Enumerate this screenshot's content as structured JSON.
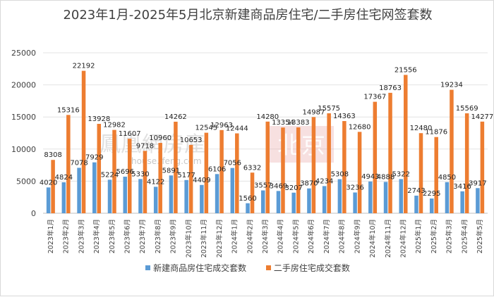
{
  "chart_data": {
    "type": "bar",
    "title": "2023年1月-2025年5月北京新建商品房住宅/二手房住宅网签套数",
    "xlabel": "",
    "ylabel": "",
    "ylim": [
      0,
      25000
    ],
    "yticks": [
      0,
      5000,
      10000,
      15000,
      20000,
      25000
    ],
    "grid": true,
    "legend_position": "bottom",
    "categories": [
      "2023年1月",
      "2023年2月",
      "2023年3月",
      "2023年4月",
      "2023年5月",
      "2023年6月",
      "2023年7月",
      "2023年8月",
      "2023年9月",
      "2023年10月",
      "2023年11月",
      "2023年12月",
      "2024年1月",
      "2024年2月",
      "2024年3月",
      "2024年4月",
      "2024年5月",
      "2024年6月",
      "2024年7月",
      "2024年8月",
      "2024年9月",
      "2024年10月",
      "2024年11月",
      "2024年12月",
      "2025年1月",
      "2025年2月",
      "2025年3月",
      "2025年4月",
      "2025年5月"
    ],
    "series": [
      {
        "name": "新建商品房住宅成交套数",
        "color": "#5b9bd5",
        "values": [
          4020,
          4824,
          7078,
          7929,
          5224,
          5696,
          5330,
          4122,
          5891,
          5177,
          4409,
          6106,
          7056,
          1560,
          3557,
          3469,
          3207,
          3870,
          4234,
          5308,
          3236,
          4943,
          4888,
          5322,
          2743,
          2295,
          4850,
          3416,
          3917
        ]
      },
      {
        "name": "二手房住宅成交套数",
        "color": "#ed7d31",
        "values": [
          8308,
          15316,
          22192,
          13928,
          12982,
          11607,
          9718,
          10960,
          14262,
          10653,
          12545,
          12963,
          12444,
          6332,
          14280,
          13354,
          13383,
          14987,
          15575,
          14363,
          12680,
          17367,
          18763,
          21556,
          12480,
          11876,
          19234,
          15569,
          14277
        ]
      }
    ],
    "watermark": {
      "text": "鳳凰網房產",
      "subtext": "house.ifeng.com",
      "box_text": "北京",
      "box_color": "#e8a5a5"
    }
  }
}
